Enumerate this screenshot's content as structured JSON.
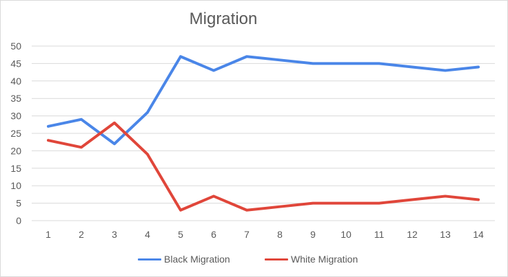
{
  "chart_data": {
    "type": "line",
    "title": "Migration",
    "xlabel": "",
    "ylabel": "",
    "categories": [
      "1",
      "2",
      "3",
      "4",
      "5",
      "6",
      "7",
      "8",
      "9",
      "10",
      "11",
      "12",
      "13",
      "14"
    ],
    "ylim": [
      0,
      50
    ],
    "yticks": [
      "0",
      "5",
      "10",
      "15",
      "20",
      "25",
      "30",
      "35",
      "40",
      "45",
      "50"
    ],
    "grid": true,
    "legend": "bottom",
    "series": [
      {
        "name": "Black Migration",
        "color": "#4a86e8",
        "values": [
          27,
          29,
          22,
          31,
          47,
          43,
          47,
          46,
          45,
          45,
          45,
          44,
          43,
          44
        ]
      },
      {
        "name": "White Migration",
        "color": "#e0463a",
        "values": [
          23,
          21,
          28,
          19,
          3,
          7,
          3,
          4,
          5,
          5,
          5,
          6,
          7,
          6
        ]
      }
    ]
  }
}
